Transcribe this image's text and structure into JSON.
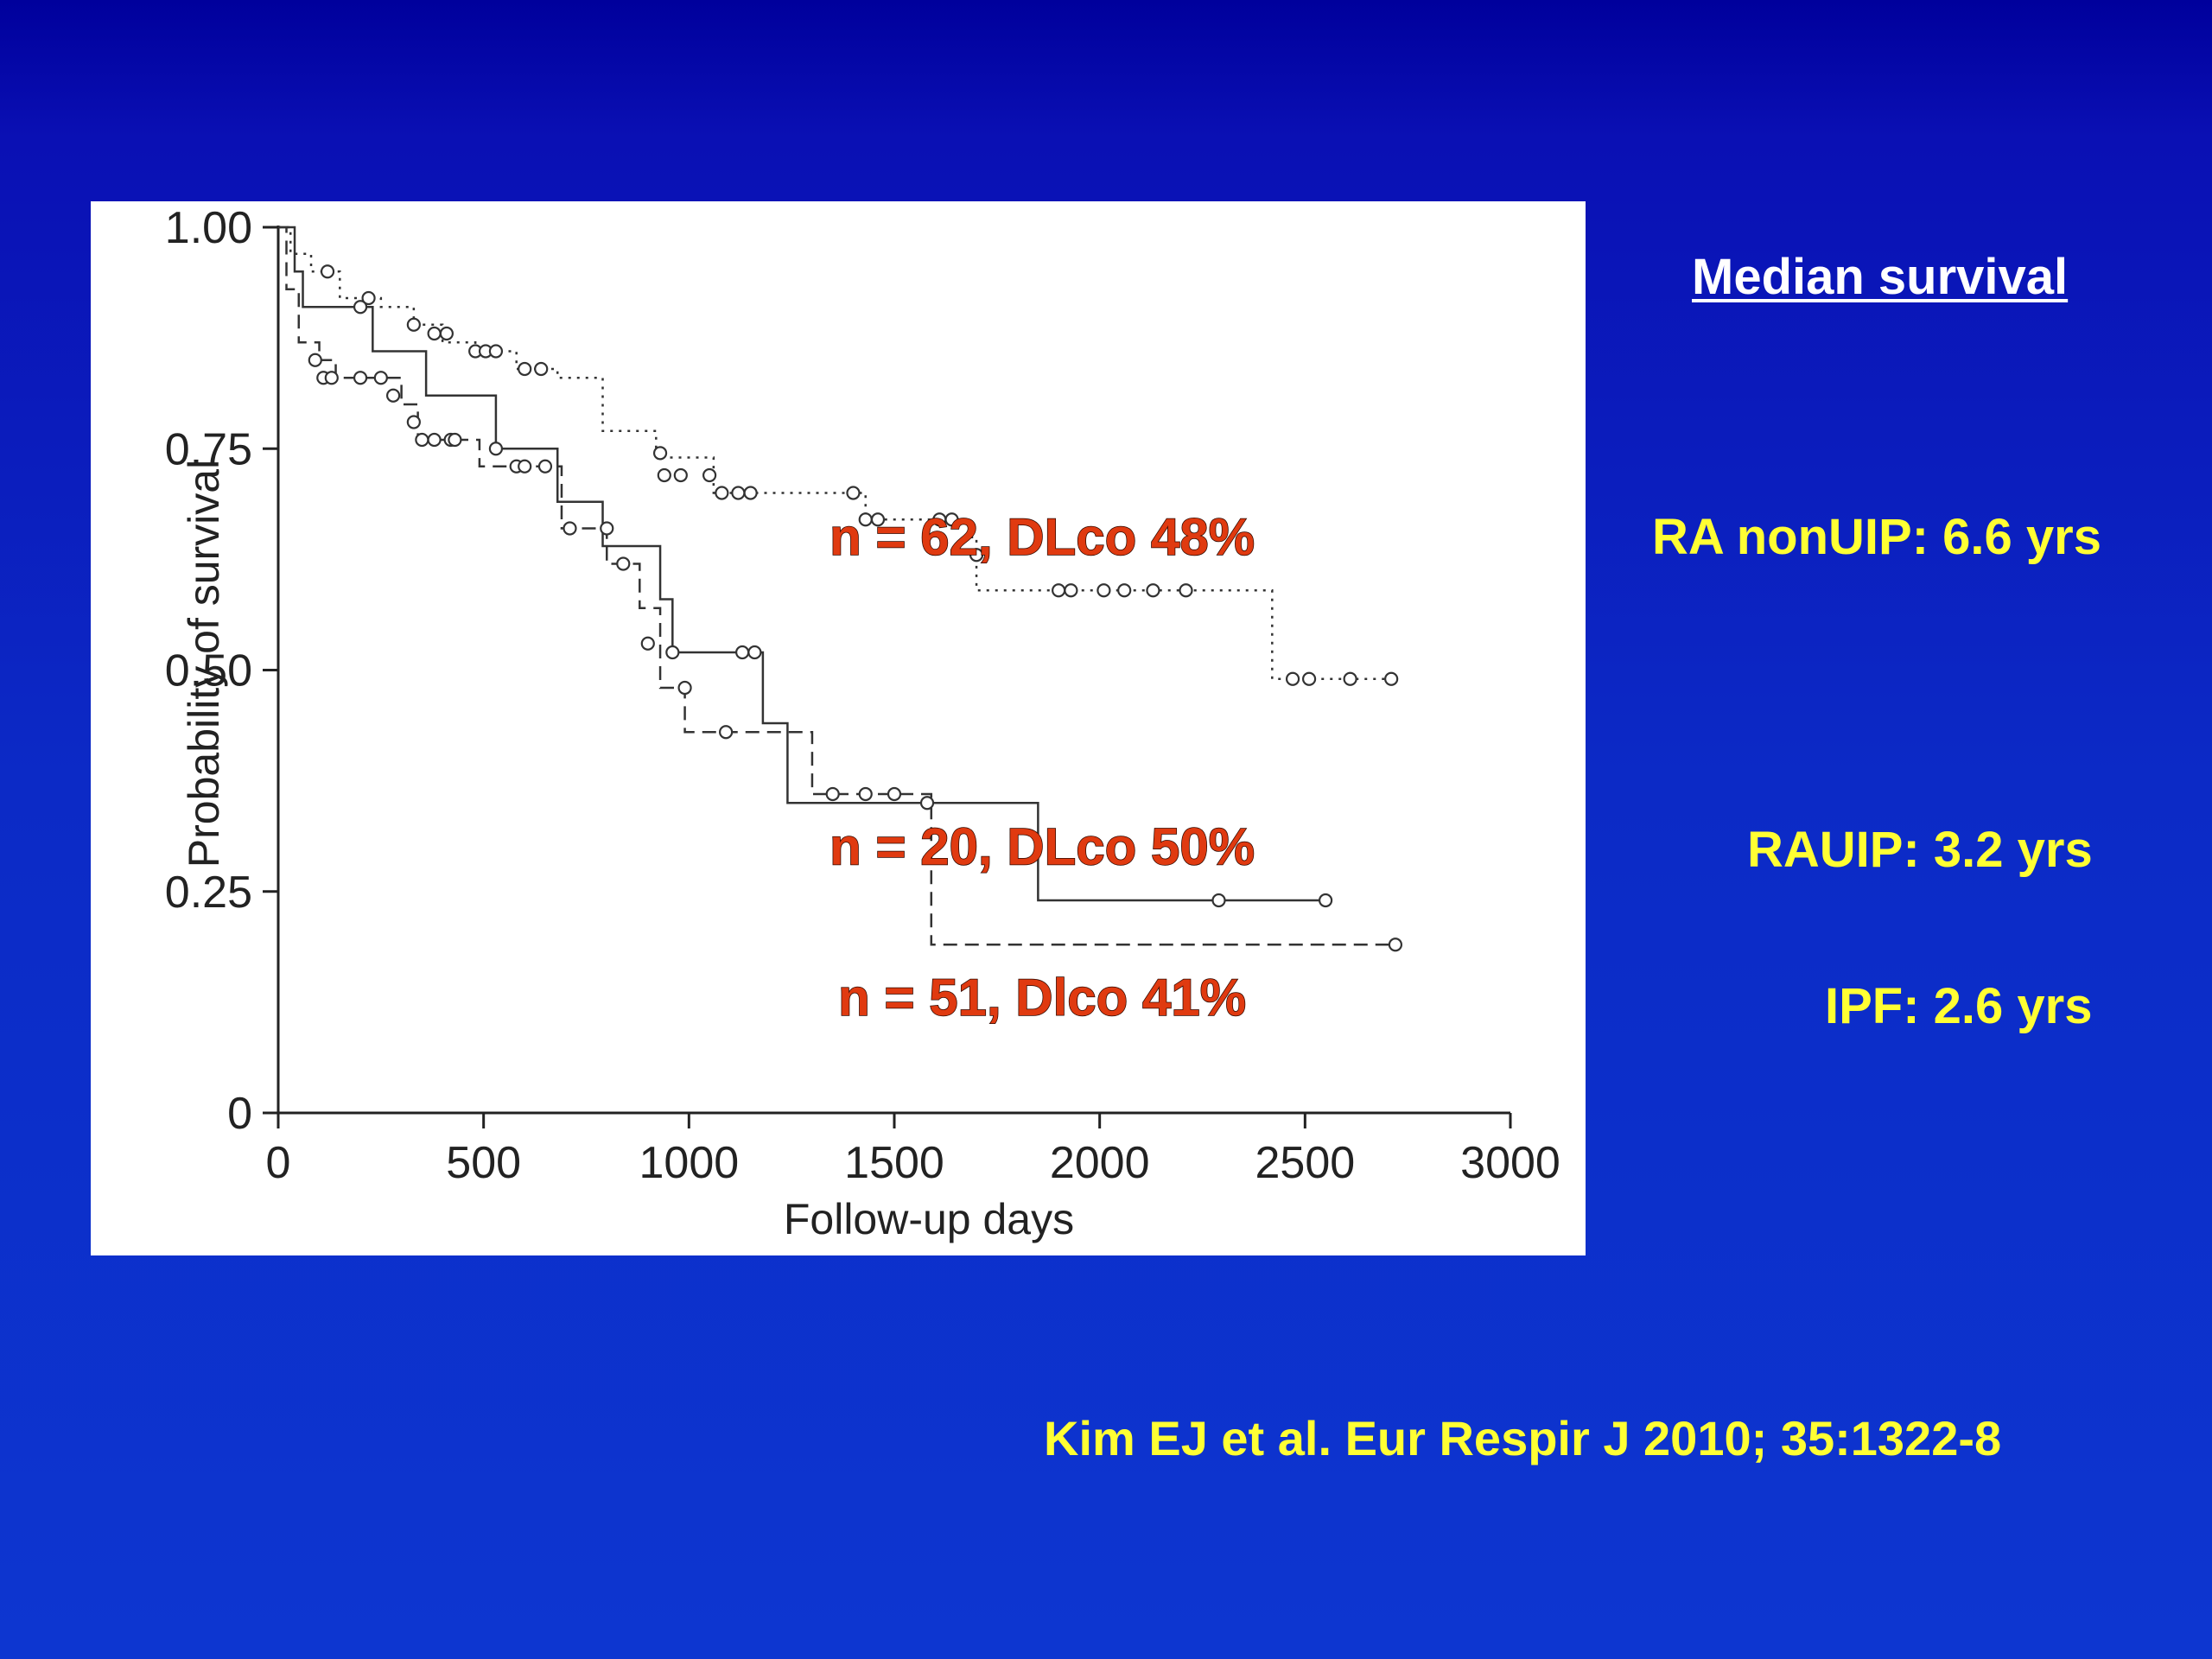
{
  "slide": {
    "median_heading": "Median survival",
    "median_items": [
      "RA nonUIP: 6.6 yrs",
      "RAUIP: 3.2 yrs",
      "IPF: 2.6 yrs"
    ],
    "citation": "Kim EJ et al.  Eur Respir J 2010; 35:1322-8",
    "colors": {
      "background": "#0a1cbc",
      "side_text": "#ffff33",
      "heading": "#ffffff",
      "annotation": "#e03a10"
    }
  },
  "chart_data": {
    "type": "line",
    "subtype": "kaplan-meier step curves with censor marks",
    "xlabel": "Follow-up days",
    "ylabel": "Probability of survival",
    "xlim": [
      0,
      3000
    ],
    "ylim": [
      0,
      1.0
    ],
    "xticks": [
      0,
      500,
      1000,
      1500,
      2000,
      2500,
      3000
    ],
    "xtick_labels": [
      "0",
      "500",
      "1000",
      "1500",
      "2000",
      "2500",
      "3000"
    ],
    "yticks": [
      0,
      0.25,
      0.5,
      0.75,
      1.0
    ],
    "ytick_labels": [
      "0",
      "0.25",
      "0.50",
      "0.75",
      "1.00"
    ],
    "grid": false,
    "annotations": [
      {
        "text": "n = 62,  DLco 48%",
        "x": 1860,
        "y": 0.65
      },
      {
        "text": "n = 20,  DLco 50%",
        "x": 1860,
        "y": 0.3
      },
      {
        "text": "n = 51,  Dlco 41%",
        "x": 1860,
        "y": 0.13
      }
    ],
    "series": [
      {
        "style": "dotted",
        "steps": [
          [
            0,
            1.0
          ],
          [
            30,
            0.97
          ],
          [
            80,
            0.95
          ],
          [
            150,
            0.92
          ],
          [
            250,
            0.91
          ],
          [
            330,
            0.89
          ],
          [
            400,
            0.87
          ],
          [
            480,
            0.86
          ],
          [
            580,
            0.84
          ],
          [
            680,
            0.83
          ],
          [
            790,
            0.77
          ],
          [
            920,
            0.74
          ],
          [
            1060,
            0.7
          ],
          [
            1430,
            0.67
          ],
          [
            1680,
            0.65
          ],
          [
            1700,
            0.59
          ],
          [
            2420,
            0.49
          ],
          [
            2710,
            0.49
          ]
        ],
        "censored": [
          [
            120,
            0.95
          ],
          [
            220,
            0.92
          ],
          [
            330,
            0.89
          ],
          [
            380,
            0.88
          ],
          [
            410,
            0.88
          ],
          [
            480,
            0.86
          ],
          [
            505,
            0.86
          ],
          [
            530,
            0.86
          ],
          [
            600,
            0.84
          ],
          [
            640,
            0.84
          ],
          [
            930,
            0.745
          ],
          [
            940,
            0.72
          ],
          [
            980,
            0.72
          ],
          [
            1050,
            0.72
          ],
          [
            1080,
            0.7
          ],
          [
            1120,
            0.7
          ],
          [
            1150,
            0.7
          ],
          [
            1400,
            0.7
          ],
          [
            1430,
            0.67
          ],
          [
            1460,
            0.67
          ],
          [
            1610,
            0.67
          ],
          [
            1640,
            0.67
          ],
          [
            1700,
            0.63
          ],
          [
            1900,
            0.59
          ],
          [
            1930,
            0.59
          ],
          [
            2010,
            0.59
          ],
          [
            2060,
            0.59
          ],
          [
            2130,
            0.59
          ],
          [
            2210,
            0.59
          ],
          [
            2470,
            0.49
          ],
          [
            2510,
            0.49
          ],
          [
            2610,
            0.49
          ],
          [
            2710,
            0.49
          ]
        ]
      },
      {
        "style": "solid",
        "steps": [
          [
            0,
            1.0
          ],
          [
            40,
            0.95
          ],
          [
            60,
            0.91
          ],
          [
            230,
            0.86
          ],
          [
            360,
            0.81
          ],
          [
            530,
            0.75
          ],
          [
            680,
            0.69
          ],
          [
            790,
            0.64
          ],
          [
            930,
            0.58
          ],
          [
            960,
            0.52
          ],
          [
            1180,
            0.44
          ],
          [
            1240,
            0.35
          ],
          [
            1850,
            0.24
          ],
          [
            2550,
            0.24
          ]
        ],
        "censored": [
          [
            200,
            0.91
          ],
          [
            530,
            0.75
          ],
          [
            800,
            0.66
          ],
          [
            960,
            0.52
          ],
          [
            1130,
            0.52
          ],
          [
            1160,
            0.52
          ],
          [
            2290,
            0.24
          ],
          [
            2550,
            0.24
          ]
        ]
      },
      {
        "style": "dashed",
        "steps": [
          [
            0,
            1.0
          ],
          [
            20,
            0.93
          ],
          [
            50,
            0.87
          ],
          [
            100,
            0.85
          ],
          [
            140,
            0.83
          ],
          [
            300,
            0.8
          ],
          [
            340,
            0.76
          ],
          [
            490,
            0.73
          ],
          [
            690,
            0.66
          ],
          [
            800,
            0.62
          ],
          [
            880,
            0.57
          ],
          [
            930,
            0.48
          ],
          [
            990,
            0.43
          ],
          [
            1300,
            0.36
          ],
          [
            1590,
            0.19
          ],
          [
            2730,
            0.19
          ]
        ],
        "censored": [
          [
            90,
            0.85
          ],
          [
            110,
            0.83
          ],
          [
            130,
            0.83
          ],
          [
            200,
            0.83
          ],
          [
            250,
            0.83
          ],
          [
            280,
            0.81
          ],
          [
            330,
            0.78
          ],
          [
            350,
            0.76
          ],
          [
            380,
            0.76
          ],
          [
            420,
            0.76
          ],
          [
            430,
            0.76
          ],
          [
            580,
            0.73
          ],
          [
            600,
            0.73
          ],
          [
            650,
            0.73
          ],
          [
            710,
            0.66
          ],
          [
            840,
            0.62
          ],
          [
            900,
            0.53
          ],
          [
            990,
            0.48
          ],
          [
            1090,
            0.43
          ],
          [
            1350,
            0.36
          ],
          [
            1430,
            0.36
          ],
          [
            1500,
            0.36
          ],
          [
            1580,
            0.35
          ],
          [
            2720,
            0.19
          ]
        ]
      }
    ]
  }
}
